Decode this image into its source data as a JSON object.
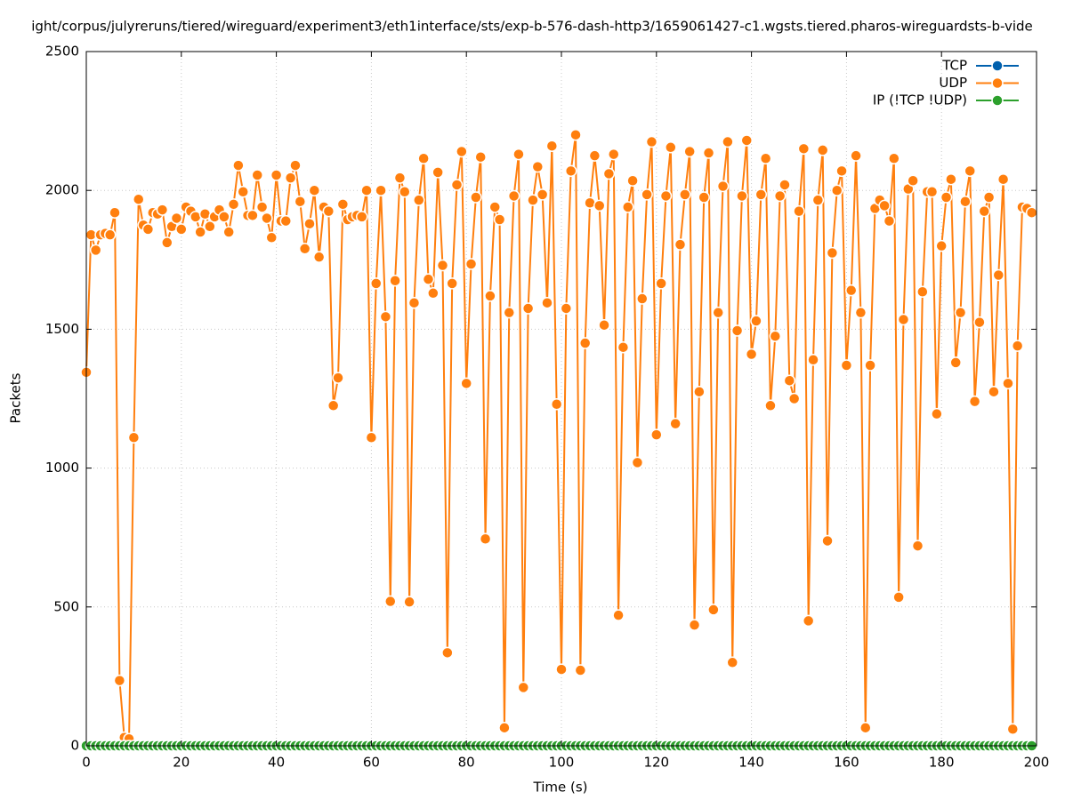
{
  "chart_data": {
    "type": "line",
    "title": "ight/corpus/julyreruns/tiered/wireguard/experiment3/eth1interface/sts/exp-b-576-dash-http3/1659061427-c1.wgsts.tiered.pharos-wireguardsts-b-vide",
    "x_label": "Time (s)",
    "y_label": "Packets",
    "xlim": [
      0,
      200
    ],
    "xticks": [
      0,
      20,
      40,
      60,
      80,
      100,
      120,
      140,
      160,
      180,
      200
    ],
    "ylim": [
      0,
      2500
    ],
    "yticks": [
      0,
      500,
      1000,
      1500,
      2000,
      2500
    ],
    "grid": true,
    "legend": "top-right",
    "x": [
      0,
      1,
      2,
      3,
      4,
      5,
      6,
      7,
      8,
      9,
      10,
      11,
      12,
      13,
      14,
      15,
      16,
      17,
      18,
      19,
      20,
      21,
      22,
      23,
      24,
      25,
      26,
      27,
      28,
      29,
      30,
      31,
      32,
      33,
      34,
      35,
      36,
      37,
      38,
      39,
      40,
      41,
      42,
      43,
      44,
      45,
      46,
      47,
      48,
      49,
      50,
      51,
      52,
      53,
      54,
      55,
      56,
      57,
      58,
      59,
      60,
      61,
      62,
      63,
      64,
      65,
      66,
      67,
      68,
      69,
      70,
      71,
      72,
      73,
      74,
      75,
      76,
      77,
      78,
      79,
      80,
      81,
      82,
      83,
      84,
      85,
      86,
      87,
      88,
      89,
      90,
      91,
      92,
      93,
      94,
      95,
      96,
      97,
      98,
      99,
      100,
      101,
      102,
      103,
      104,
      105,
      106,
      107,
      108,
      109,
      110,
      111,
      112,
      113,
      114,
      115,
      116,
      117,
      118,
      119,
      120,
      121,
      122,
      123,
      124,
      125,
      126,
      127,
      128,
      129,
      130,
      131,
      132,
      133,
      134,
      135,
      136,
      137,
      138,
      139,
      140,
      141,
      142,
      143,
      144,
      145,
      146,
      147,
      148,
      149,
      150,
      151,
      152,
      153,
      154,
      155,
      156,
      157,
      158,
      159,
      160,
      161,
      162,
      163,
      164,
      165,
      166,
      167,
      168,
      169,
      170,
      171,
      172,
      173,
      174,
      175,
      176,
      177,
      178,
      179,
      180,
      181,
      182,
      183,
      184,
      185,
      186,
      187,
      188,
      189,
      190,
      191,
      192,
      193,
      194,
      195,
      196,
      197,
      198,
      199
    ],
    "series": [
      {
        "name": "TCP",
        "color": "#0060ad",
        "values": [
          0,
          0,
          0,
          0,
          0,
          0,
          0,
          0,
          0,
          0,
          0,
          0,
          0,
          0,
          0,
          0,
          0,
          0,
          0,
          0,
          0,
          0,
          0,
          0,
          0,
          0,
          0,
          0,
          0,
          0,
          0,
          0,
          0,
          0,
          0,
          0,
          0,
          0,
          0,
          0,
          0,
          0,
          0,
          0,
          0,
          0,
          0,
          0,
          0,
          0,
          0,
          0,
          0,
          0,
          0,
          0,
          0,
          0,
          0,
          0,
          0,
          0,
          0,
          0,
          0,
          0,
          0,
          0,
          0,
          0,
          0,
          0,
          0,
          0,
          0,
          0,
          0,
          0,
          0,
          0,
          0,
          0,
          0,
          0,
          0,
          0,
          0,
          0,
          0,
          0,
          0,
          0,
          0,
          0,
          0,
          0,
          0,
          0,
          0,
          0,
          0,
          0,
          0,
          0,
          0,
          0,
          0,
          0,
          0,
          0,
          0,
          0,
          0,
          0,
          0,
          0,
          0,
          0,
          0,
          0,
          0,
          0,
          0,
          0,
          0,
          0,
          0,
          0,
          0,
          0,
          0,
          0,
          0,
          0,
          0,
          0,
          0,
          0,
          0,
          0,
          0,
          0,
          0,
          0,
          0,
          0,
          0,
          0,
          0,
          0,
          0,
          0,
          0,
          0,
          0,
          0,
          0,
          0,
          0,
          0,
          0,
          0,
          0,
          0,
          0,
          0,
          0,
          0,
          0,
          0,
          0,
          0,
          0,
          0,
          0,
          0,
          0,
          0,
          0,
          0,
          0,
          0,
          0,
          0,
          0,
          0,
          0,
          0,
          0,
          0,
          0,
          0,
          0,
          0,
          0,
          0,
          0,
          0,
          0,
          0
        ]
      },
      {
        "name": "UDP",
        "color": "#ff7f0e",
        "values": [
          1345,
          1840,
          1785,
          1840,
          1845,
          1840,
          1920,
          235,
          30,
          25,
          1110,
          1968,
          1875,
          1860,
          1920,
          1915,
          1930,
          1812,
          1870,
          1900,
          1860,
          1940,
          1925,
          1905,
          1850,
          1915,
          1870,
          1905,
          1930,
          1905,
          1850,
          1950,
          2090,
          1995,
          1910,
          1910,
          2055,
          1940,
          1900,
          1830,
          2055,
          1890,
          1890,
          2045,
          2090,
          1960,
          1790,
          1880,
          2000,
          1760,
          1940,
          1925,
          1225,
          1325,
          1950,
          1895,
          1905,
          1910,
          1905,
          2000,
          1110,
          1665,
          2000,
          1545,
          520,
          1675,
          2045,
          1995,
          518,
          1595,
          1965,
          2115,
          1680,
          1630,
          2065,
          1730,
          335,
          1665,
          2020,
          2140,
          1305,
          1735,
          1975,
          2120,
          745,
          1620,
          1940,
          1895,
          65,
          1560,
          1980,
          2130,
          210,
          1575,
          1965,
          2085,
          1985,
          1595,
          2160,
          1230,
          275,
          1575,
          2070,
          2200,
          272,
          1450,
          1955,
          2125,
          1945,
          1515,
          2060,
          2130,
          470,
          1435,
          1940,
          2035,
          1020,
          1610,
          1985,
          2175,
          1120,
          1665,
          1980,
          2155,
          1160,
          1805,
          1985,
          2140,
          435,
          1275,
          1975,
          2135,
          490,
          1560,
          2015,
          2175,
          300,
          1495,
          1980,
          2180,
          1410,
          1530,
          1985,
          2115,
          1225,
          1475,
          1980,
          2020,
          1315,
          1250,
          1925,
          2150,
          450,
          1390,
          1965,
          2145,
          738,
          1775,
          2000,
          2070,
          1370,
          1640,
          2125,
          1560,
          65,
          1370,
          1935,
          1965,
          1945,
          1890,
          2115,
          535,
          1535,
          2005,
          2035,
          720,
          1635,
          1995,
          1995,
          1195,
          1800,
          1975,
          2040,
          1380,
          1560,
          1960,
          2070,
          1240,
          1525,
          1925,
          1975,
          1275,
          1695,
          2040,
          1305,
          60,
          1440,
          1940,
          1935,
          1920
        ]
      },
      {
        "name": "IP (!TCP  !UDP)",
        "color": "#2ca02c",
        "values": [
          0,
          0,
          0,
          0,
          0,
          0,
          0,
          0,
          0,
          0,
          0,
          0,
          0,
          0,
          0,
          0,
          0,
          0,
          0,
          0,
          0,
          0,
          0,
          0,
          0,
          0,
          0,
          0,
          0,
          0,
          0,
          0,
          0,
          0,
          0,
          0,
          0,
          0,
          0,
          0,
          0,
          0,
          0,
          0,
          0,
          0,
          0,
          0,
          0,
          0,
          0,
          0,
          0,
          0,
          0,
          0,
          0,
          0,
          0,
          0,
          0,
          0,
          0,
          0,
          0,
          0,
          0,
          0,
          0,
          0,
          0,
          0,
          0,
          0,
          0,
          0,
          0,
          0,
          0,
          0,
          0,
          0,
          0,
          0,
          0,
          0,
          0,
          0,
          0,
          0,
          0,
          0,
          0,
          0,
          0,
          0,
          0,
          0,
          0,
          0,
          0,
          0,
          0,
          0,
          0,
          0,
          0,
          0,
          0,
          0,
          0,
          0,
          0,
          0,
          0,
          0,
          0,
          0,
          0,
          0,
          0,
          0,
          0,
          0,
          0,
          0,
          0,
          0,
          0,
          0,
          0,
          0,
          0,
          0,
          0,
          0,
          0,
          0,
          0,
          0,
          0,
          0,
          0,
          0,
          0,
          0,
          0,
          0,
          0,
          0,
          0,
          0,
          0,
          0,
          0,
          0,
          0,
          0,
          0,
          0,
          0,
          0,
          0,
          0,
          0,
          0,
          0,
          0,
          0,
          0,
          0,
          0,
          0,
          0,
          0,
          0,
          0,
          0,
          0,
          0,
          0,
          0,
          0,
          0,
          0,
          0,
          0,
          0,
          0,
          0,
          0,
          0,
          0,
          0,
          0,
          0,
          0,
          0,
          0,
          0
        ]
      }
    ]
  }
}
